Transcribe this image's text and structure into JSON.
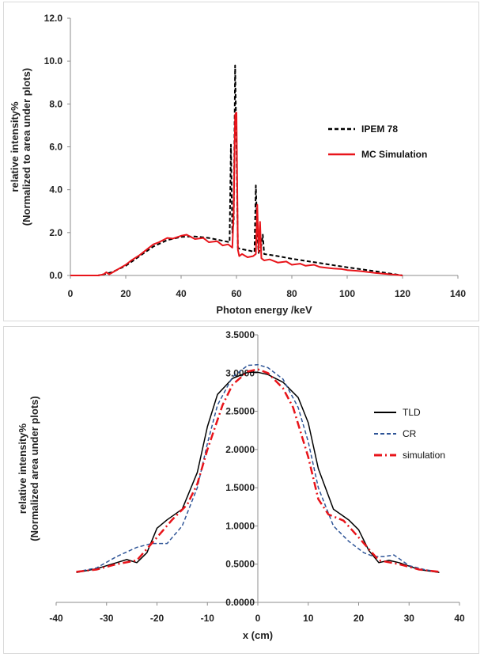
{
  "chart_data": [
    {
      "type": "line",
      "xlabel": "Photon energy /keV",
      "ylabel": "relative intensity%",
      "ylabel_line2": "(Normalized to area under plots)",
      "xlim": [
        0,
        140
      ],
      "ylim": [
        0,
        12
      ],
      "x_ticks": [
        "0",
        "20",
        "40",
        "60",
        "80",
        "100",
        "120",
        "140"
      ],
      "y_ticks": [
        "0.0",
        "2.0",
        "4.0",
        "6.0",
        "8.0",
        "10.0",
        "12.0"
      ],
      "grid": false,
      "legend_position": "right",
      "series": [
        {
          "name": "IPEM 78",
          "color": "#000000",
          "style": "dashed",
          "x": [
            0,
            10,
            12,
            15,
            20,
            25,
            30,
            35,
            40,
            45,
            50,
            55,
            57.5,
            58,
            58.5,
            59,
            59.5,
            60,
            60.5,
            61,
            65,
            66.5,
            67,
            67.5,
            68,
            69,
            69.5,
            70,
            75,
            80,
            90,
            100,
            110,
            120
          ],
          "values": [
            0,
            0,
            0.05,
            0.15,
            0.45,
            0.9,
            1.35,
            1.65,
            1.8,
            1.82,
            1.75,
            1.62,
            1.55,
            6.1,
            2.0,
            2.5,
            9.8,
            6.0,
            1.3,
            1.25,
            1.15,
            1.1,
            4.2,
            2.0,
            1.05,
            1.4,
            1.9,
            1.0,
            0.9,
            0.78,
            0.58,
            0.38,
            0.2,
            0.0
          ]
        },
        {
          "name": "MC Simulation",
          "color": "#e8141a",
          "style": "solid",
          "x": [
            0,
            10,
            12,
            13,
            14,
            16,
            18,
            20,
            22,
            25,
            28,
            30,
            32,
            35,
            37,
            40,
            42,
            45,
            48,
            50,
            53,
            55,
            57,
            58.5,
            59,
            59.5,
            60,
            60.5,
            61,
            62,
            64,
            66,
            67,
            67.5,
            68,
            68.5,
            69,
            70,
            72,
            75,
            78,
            80,
            83,
            85,
            88,
            90,
            93,
            95,
            98,
            100,
            103,
            105,
            108,
            110,
            113,
            115,
            118,
            120
          ],
          "values": [
            0,
            0,
            0.05,
            0.15,
            0.05,
            0.2,
            0.35,
            0.5,
            0.7,
            0.95,
            1.25,
            1.45,
            1.55,
            1.75,
            1.72,
            1.85,
            1.9,
            1.7,
            1.75,
            1.55,
            1.6,
            1.4,
            1.45,
            1.3,
            3.0,
            7.5,
            7.6,
            1.2,
            0.9,
            1.0,
            0.85,
            0.9,
            1.0,
            3.3,
            1.1,
            2.5,
            0.8,
            0.7,
            0.75,
            0.6,
            0.65,
            0.5,
            0.55,
            0.45,
            0.5,
            0.4,
            0.35,
            0.32,
            0.3,
            0.25,
            0.22,
            0.2,
            0.15,
            0.12,
            0.08,
            0.06,
            0.03,
            0.0
          ]
        }
      ]
    },
    {
      "type": "line",
      "xlabel": "x (cm)",
      "ylabel": "relative intensity%",
      "ylabel_line2": "(Normalized area under plots)",
      "xlim": [
        -40,
        40
      ],
      "ylim": [
        0,
        3.5
      ],
      "x_ticks": [
        "-40",
        "-30",
        "-20",
        "-10",
        "0",
        "10",
        "20",
        "30",
        "40"
      ],
      "y_ticks": [
        "0.0000",
        "0.5000",
        "1.0000",
        "1.5000",
        "2.0000",
        "2.5000",
        "3.0000",
        "3.5000"
      ],
      "grid": false,
      "legend_position": "right",
      "series": [
        {
          "name": "TLD",
          "color": "#000000",
          "style": "solid",
          "x": [
            -36,
            -32,
            -28,
            -26,
            -24,
            -22,
            -20,
            -18,
            -15,
            -12,
            -10,
            -8,
            -5,
            -2,
            0,
            2,
            5,
            8,
            10,
            12,
            15,
            18,
            20,
            22,
            24,
            26,
            28,
            32,
            36
          ],
          "values": [
            0.39,
            0.44,
            0.52,
            0.56,
            0.52,
            0.65,
            0.97,
            1.08,
            1.22,
            1.7,
            2.3,
            2.72,
            2.93,
            3.01,
            3.01,
            2.98,
            2.88,
            2.68,
            2.35,
            1.75,
            1.22,
            1.08,
            0.95,
            0.68,
            0.52,
            0.55,
            0.52,
            0.43,
            0.39
          ]
        },
        {
          "name": "CR",
          "color": "#2f5597",
          "style": "dashed",
          "x": [
            -36,
            -32,
            -28,
            -24,
            -21,
            -18,
            -15,
            -12,
            -10,
            -8,
            -5,
            -2,
            0,
            2,
            5,
            8,
            10,
            12,
            15,
            18,
            21,
            23,
            25,
            27,
            30,
            33,
            36
          ],
          "values": [
            0.4,
            0.45,
            0.6,
            0.72,
            0.77,
            0.77,
            1.0,
            1.5,
            2.08,
            2.58,
            2.95,
            3.1,
            3.11,
            3.07,
            2.92,
            2.55,
            2.1,
            1.5,
            1.0,
            0.8,
            0.65,
            0.6,
            0.6,
            0.62,
            0.48,
            0.43,
            0.4
          ]
        },
        {
          "name": "simulation",
          "color": "#e8141a",
          "style": "dashdot",
          "x": [
            -36,
            -32,
            -28,
            -24,
            -20,
            -17,
            -14,
            -12,
            -10,
            -7,
            -5,
            -2,
            0,
            2,
            5,
            7,
            10,
            12,
            14,
            17,
            20,
            24,
            28,
            32,
            36
          ],
          "values": [
            0.4,
            0.43,
            0.5,
            0.55,
            0.85,
            1.08,
            1.28,
            1.55,
            2.0,
            2.58,
            2.85,
            3.02,
            3.05,
            3.0,
            2.8,
            2.55,
            1.9,
            1.35,
            1.15,
            1.07,
            0.85,
            0.55,
            0.5,
            0.43,
            0.4
          ]
        }
      ]
    }
  ]
}
